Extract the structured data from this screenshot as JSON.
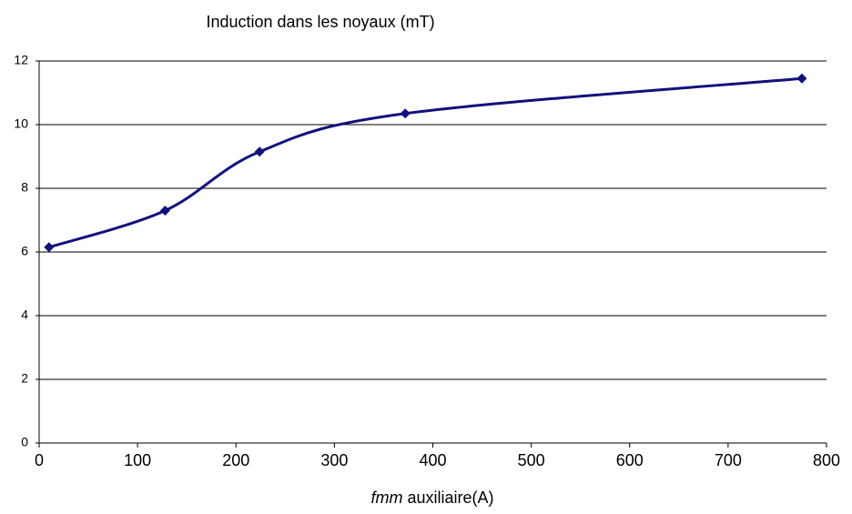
{
  "chart_data": {
    "type": "line",
    "smooth": true,
    "title": "Induction dans les noyaux (mT)",
    "xlabel": [
      "fmm",
      "auxiliaire(A)"
    ],
    "x": [
      10,
      128,
      224,
      372,
      775
    ],
    "series": [
      {
        "name": null,
        "color": "#11117a",
        "values": [
          6.15,
          7.3,
          9.15,
          10.35,
          11.45
        ]
      }
    ],
    "xlim": [
      0,
      800
    ],
    "xticks": [
      0,
      100,
      200,
      300,
      400,
      500,
      600,
      700,
      800
    ],
    "ylim": [
      0,
      12
    ],
    "yticks": [
      0,
      2,
      4,
      6,
      8,
      10,
      12
    ],
    "grid": true
  }
}
